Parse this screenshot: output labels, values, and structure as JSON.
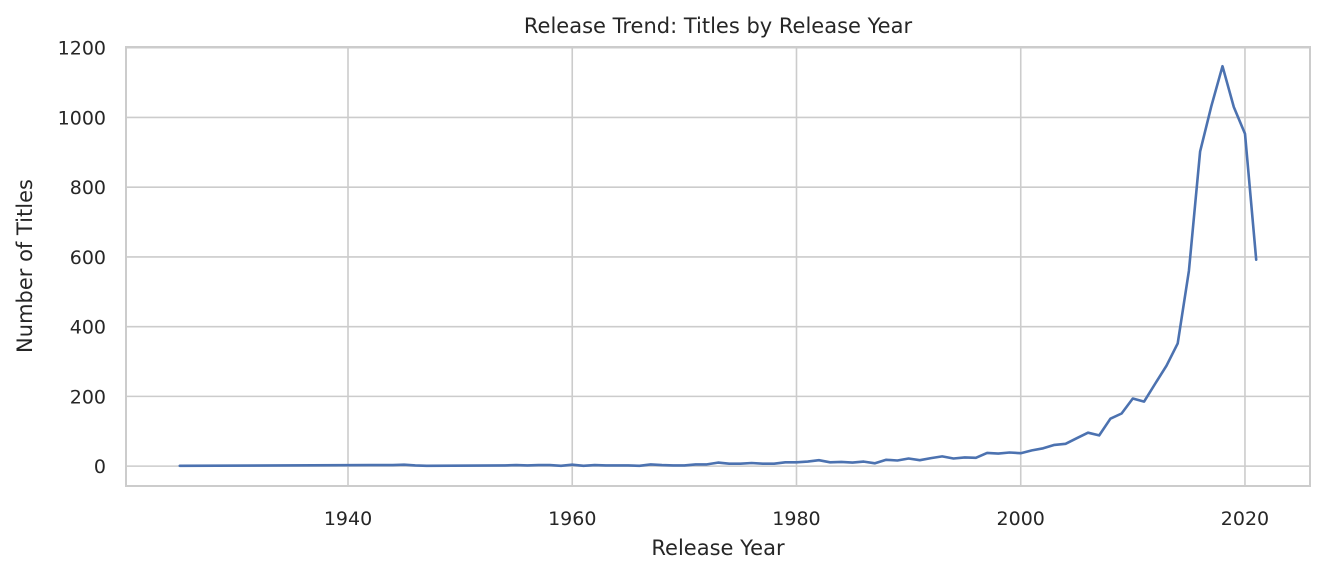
{
  "chart_data": {
    "type": "line",
    "title": "Release Trend: Titles by Release Year",
    "xlabel": "Release Year",
    "ylabel": "Number of Titles",
    "xlim": [
      1920.2,
      2025.8
    ],
    "ylim": [
      -57,
      1202
    ],
    "xticks": [
      1940,
      1960,
      1980,
      2000,
      2020
    ],
    "yticks": [
      0,
      200,
      400,
      600,
      800,
      1000,
      1200
    ],
    "grid": true,
    "line_color": "#4c72b0",
    "series": [
      {
        "x": [
          1925,
          1942,
          1943,
          1944,
          1945,
          1946,
          1947,
          1954,
          1955,
          1956,
          1957,
          1958,
          1959,
          1960,
          1961,
          1962,
          1963,
          1964,
          1965,
          1966,
          1967,
          1968,
          1969,
          1970,
          1971,
          1972,
          1973,
          1974,
          1975,
          1976,
          1977,
          1978,
          1979,
          1980,
          1981,
          1982,
          1983,
          1984,
          1985,
          1986,
          1987,
          1988,
          1989,
          1990,
          1991,
          1992,
          1993,
          1994,
          1995,
          1996,
          1997,
          1998,
          1999,
          2000,
          2001,
          2002,
          2003,
          2004,
          2005,
          2006,
          2007,
          2008,
          2009,
          2010,
          2011,
          2012,
          2013,
          2014,
          2015,
          2016,
          2017,
          2018,
          2019,
          2020,
          2021
        ],
        "values": [
          1,
          3,
          3,
          3,
          4,
          2,
          1,
          2,
          3,
          2,
          3,
          3,
          1,
          4,
          1,
          3,
          2,
          2,
          2,
          1,
          5,
          3,
          2,
          2,
          5,
          5,
          10,
          7,
          7,
          9,
          7,
          7,
          11,
          11,
          13,
          17,
          11,
          12,
          10,
          13,
          8,
          18,
          16,
          22,
          17,
          23,
          28,
          22,
          25,
          24,
          38,
          36,
          39,
          37,
          45,
          51,
          61,
          64,
          80,
          96,
          88,
          136,
          151,
          194,
          185,
          237,
          288,
          352,
          560,
          902,
          1032,
          1147,
          1030,
          953,
          592
        ]
      }
    ]
  }
}
